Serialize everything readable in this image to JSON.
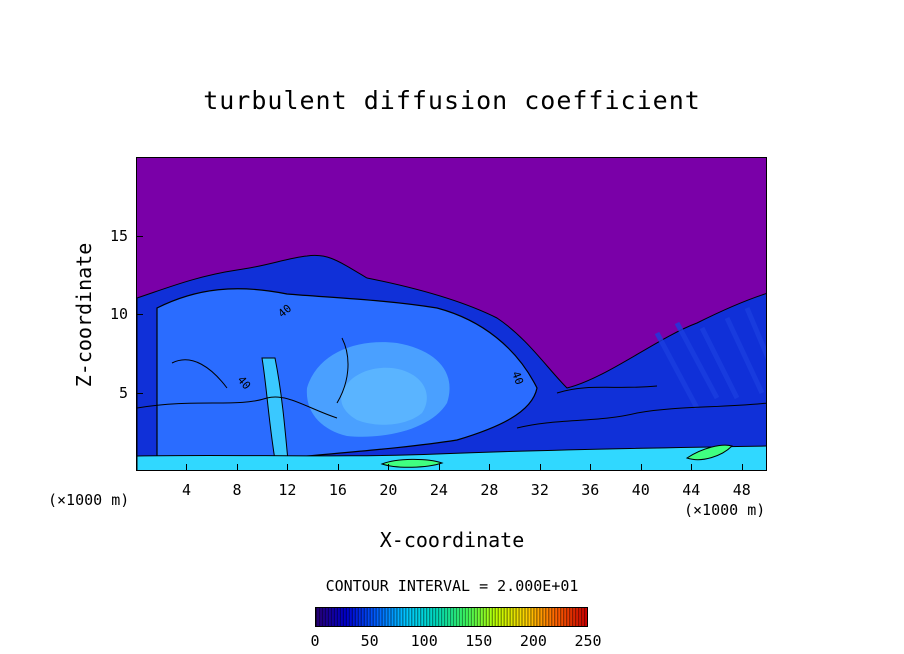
{
  "chart_data": {
    "type": "heatmap",
    "title": "turbulent diffusion coefficient",
    "xlabel": "X-coordinate",
    "ylabel": "Z-coordinate",
    "x_unit_label": "(×1000 m)",
    "y_unit_label": "(×1000 m)",
    "xlim": [
      0,
      50
    ],
    "ylim": [
      0,
      20
    ],
    "x_ticks": [
      "4",
      "8",
      "12",
      "16",
      "20",
      "24",
      "28",
      "32",
      "36",
      "40",
      "44",
      "48"
    ],
    "x_tick_values": [
      4,
      8,
      12,
      16,
      20,
      24,
      28,
      32,
      36,
      40,
      44,
      48
    ],
    "y_ticks": [
      "5",
      "10",
      "15"
    ],
    "y_tick_values": [
      5,
      10,
      15
    ],
    "contour_interval_text": "CONTOUR INTERVAL = 2.000E+01",
    "contour_labels": [
      "40",
      "40",
      "40"
    ],
    "colorbar": {
      "ticks": [
        "0",
        "50",
        "100",
        "150",
        "200",
        "250"
      ],
      "tick_values": [
        0,
        50,
        100,
        150,
        200,
        250
      ],
      "range": [
        0,
        250
      ],
      "colors": [
        "#2a007a",
        "#0000d0",
        "#0060ff",
        "#00c8ff",
        "#00e0c0",
        "#40ff60",
        "#c0ff00",
        "#ffd000",
        "#ff6000",
        "#d00000"
      ]
    },
    "background_color": "#7a00a8",
    "field_colors": {
      "low": "#7a00a8",
      "blue": "#1040e8",
      "mid_blue": "#2a6cff",
      "light_blue": "#4aa0ff",
      "cyan": "#30d8ff",
      "green": "#40ff80"
    }
  }
}
